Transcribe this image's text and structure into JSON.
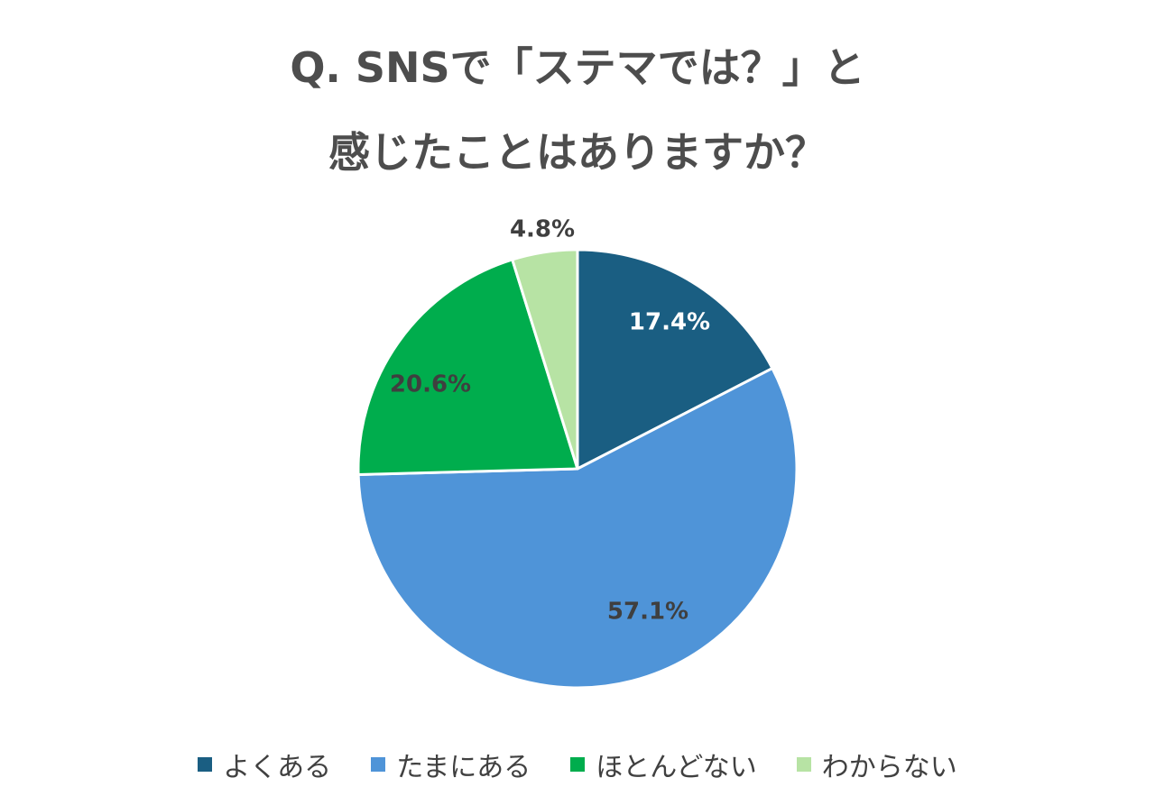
{
  "chart_data": {
    "type": "pie",
    "title_lines": [
      "Q. SNSで「ステマでは？」と",
      "感じたことはありますか？"
    ],
    "categories": [
      "よくある",
      "たまにある",
      "ほとんどない",
      "わからない"
    ],
    "values": [
      17.4,
      57.1,
      20.6,
      4.8
    ],
    "labels": [
      "17.4%",
      "57.1%",
      "20.6%",
      "4.8%"
    ],
    "colors": [
      "#1a5e82",
      "#4f94d8",
      "#00ad4d",
      "#b7e3a4"
    ],
    "label_colors": [
      "#ffffff",
      "#3f3f3f",
      "#3f3f3f",
      "#3f3f3f"
    ],
    "legend_position": "bottom"
  }
}
